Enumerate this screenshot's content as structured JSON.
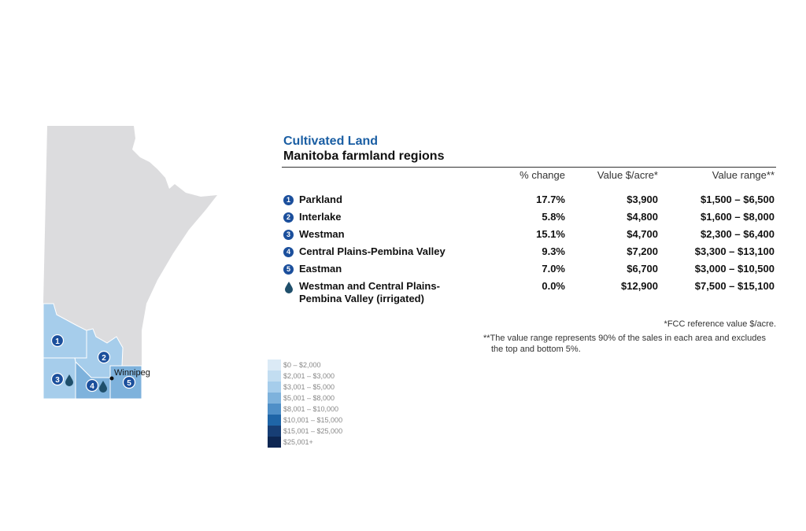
{
  "map": {
    "city": "Winnipeg"
  },
  "legend": [
    {
      "label": "$0 – $2,000",
      "color": "#dbeaf6"
    },
    {
      "label": "$2,001 – $3,000",
      "color": "#c2ddf1"
    },
    {
      "label": "$3,001 – $5,000",
      "color": "#a6cdeb"
    },
    {
      "label": "$5,001 – $8,000",
      "color": "#7eb2dc"
    },
    {
      "label": "$8,001 – $10,000",
      "color": "#4f8fc7"
    },
    {
      "label": "$10,001 – $15,000",
      "color": "#1f65a7"
    },
    {
      "label": "$15,001 – $25,000",
      "color": "#173e75"
    },
    {
      "label": "$25,001+",
      "color": "#0d2652"
    }
  ],
  "table": {
    "title": "Cultivated Land",
    "subtitle": "Manitoba farmland regions",
    "columns": [
      "% change",
      "Value $/acre*",
      "Value range**"
    ],
    "rows": [
      {
        "marker": "1",
        "name": "Parkland",
        "cells": [
          "17.7%",
          "$3,900",
          "$1,500 – $6,500"
        ]
      },
      {
        "marker": "2",
        "name": "Interlake",
        "cells": [
          "5.8%",
          "$4,800",
          "$1,600 – $8,000"
        ]
      },
      {
        "marker": "3",
        "name": "Westman",
        "cells": [
          "15.1%",
          "$4,700",
          "$2,300 – $6,400"
        ]
      },
      {
        "marker": "4",
        "name": "Central Plains-Pembina Valley",
        "cells": [
          "9.3%",
          "$7,200",
          "$3,300 – $13,100"
        ]
      },
      {
        "marker": "5",
        "name": "Eastman",
        "cells": [
          "7.0%",
          "$6,700",
          "$3,000 – $10,500"
        ]
      },
      {
        "name": "Westman and Central Plains-Pembina Valley (irrigated)",
        "cells": [
          "0.0%",
          "$12,900",
          "$7,500 – $15,100"
        ]
      }
    ]
  },
  "footnotes": [
    "*FCC reference value $/acre.",
    "**The value range represents 90% of the sales in each area and excludes the top and bottom 5%."
  ]
}
